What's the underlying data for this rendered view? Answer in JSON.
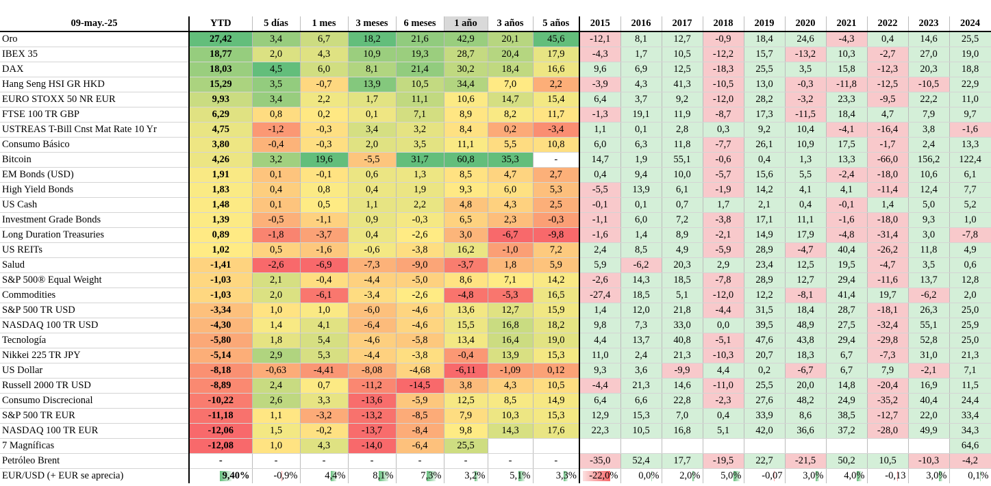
{
  "table": {
    "header": [
      "09-may.-25",
      "YTD",
      "5 días",
      "1 mes",
      "3 meses",
      "6 meses",
      "1 año",
      "3 años",
      "5 años",
      "2015",
      "2016",
      "2017",
      "2018",
      "2019",
      "2020",
      "2021",
      "2022",
      "2023",
      "2024"
    ],
    "rows": [
      [
        "Oro",
        "27,42",
        "3,4",
        "6,7",
        "18,2",
        "21,6",
        "42,9",
        "20,1",
        "45,6",
        "-12,1",
        "8,1",
        "12,7",
        "-0,9",
        "18,4",
        "24,6",
        "-4,3",
        "0,4",
        "14,6",
        "25,5"
      ],
      [
        "IBEX 35",
        "18,77",
        "2,0",
        "4,3",
        "10,9",
        "19,3",
        "28,7",
        "20,4",
        "17,9",
        "-4,3",
        "1,7",
        "10,5",
        "-12,2",
        "15,7",
        "-13,2",
        "10,3",
        "-2,7",
        "27,0",
        "19,0"
      ],
      [
        "DAX",
        "18,03",
        "4,5",
        "6,0",
        "8,1",
        "21,4",
        "30,2",
        "18,4",
        "16,6",
        "9,6",
        "6,9",
        "12,5",
        "-18,3",
        "25,5",
        "3,5",
        "15,8",
        "-12,3",
        "20,3",
        "18,8"
      ],
      [
        "Hang Seng HSI GR HKD",
        "15,29",
        "3,5",
        "-0,7",
        "13,9",
        "10,5",
        "34,4",
        "7,0",
        "2,2",
        "-3,9",
        "4,3",
        "41,3",
        "-10,5",
        "13,0",
        "-0,3",
        "-11,8",
        "-12,5",
        "-10,5",
        "22,9"
      ],
      [
        "EURO STOXX 50 NR EUR",
        "9,93",
        "3,4",
        "2,2",
        "1,7",
        "11,1",
        "10,6",
        "14,7",
        "15,4",
        "6,4",
        "3,7",
        "9,2",
        "-12,0",
        "28,2",
        "-3,2",
        "23,3",
        "-9,5",
        "22,2",
        "11,0"
      ],
      [
        "FTSE 100 TR GBP",
        "6,29",
        "0,8",
        "0,2",
        "0,1",
        "7,1",
        "8,9",
        "8,2",
        "11,7",
        "-1,3",
        "19,1",
        "11,9",
        "-8,7",
        "17,3",
        "-11,5",
        "18,4",
        "4,7",
        "7,9",
        "9,7"
      ],
      [
        "USTREAS T-Bill Cnst Mat Rate 10 Yr",
        "4,75",
        "-1,2",
        "-0,3",
        "3,4",
        "3,2",
        "8,4",
        "0,2",
        "-3,4",
        "1,1",
        "0,1",
        "2,8",
        "0,3",
        "9,2",
        "10,4",
        "-4,1",
        "-16,4",
        "3,8",
        "-1,6"
      ],
      [
        "Consumo Básico",
        "3,80",
        "-0,4",
        "-0,3",
        "2,0",
        "3,5",
        "11,1",
        "5,5",
        "10,8",
        "6,0",
        "6,3",
        "11,8",
        "-7,7",
        "26,1",
        "10,9",
        "17,5",
        "-1,7",
        "2,4",
        "13,3"
      ],
      [
        "Bitcoin",
        "4,26",
        "3,2",
        "19,6",
        "-5,5",
        "31,7",
        "60,8",
        "35,3",
        "-",
        "14,7",
        "1,9",
        "55,1",
        "-0,6",
        "0,4",
        "1,3",
        "13,3",
        "-66,0",
        "156,2",
        "122,4"
      ],
      [
        "EM Bonds (USD)",
        "1,91",
        "0,1",
        "-0,1",
        "0,6",
        "1,3",
        "8,5",
        "4,7",
        "2,7",
        "0,4",
        "9,4",
        "10,0",
        "-5,7",
        "15,6",
        "5,5",
        "-2,4",
        "-18,0",
        "10,6",
        "6,1"
      ],
      [
        "High Yield Bonds",
        "1,83",
        "0,4",
        "0,8",
        "0,4",
        "1,9",
        "9,3",
        "6,0",
        "5,3",
        "-5,5",
        "13,9",
        "6,1",
        "-1,9",
        "14,2",
        "4,1",
        "4,1",
        "-11,4",
        "12,4",
        "7,7"
      ],
      [
        "US Cash",
        "1,48",
        "0,1",
        "0,5",
        "1,1",
        "2,2",
        "4,8",
        "4,3",
        "2,5",
        "-0,1",
        "0,1",
        "0,7",
        "1,7",
        "2,1",
        "0,4",
        "-0,1",
        "1,4",
        "5,0",
        "5,2"
      ],
      [
        "Investment Grade Bonds",
        "1,39",
        "-0,5",
        "-1,1",
        "0,9",
        "-0,3",
        "6,5",
        "2,3",
        "-0,3",
        "-1,1",
        "6,0",
        "7,2",
        "-3,8",
        "17,1",
        "11,1",
        "-1,6",
        "-18,0",
        "9,3",
        "1,0"
      ],
      [
        "Long Duration Treasuries",
        "0,89",
        "-1,8",
        "-3,7",
        "0,4",
        "-2,6",
        "3,0",
        "-6,7",
        "-9,8",
        "-1,6",
        "1,4",
        "8,9",
        "-2,1",
        "14,9",
        "17,9",
        "-4,8",
        "-31,4",
        "3,0",
        "-7,8"
      ],
      [
        "US REITs",
        "1,02",
        "0,5",
        "-1,6",
        "-0,6",
        "-3,8",
        "16,2",
        "-1,0",
        "7,2",
        "2,4",
        "8,5",
        "4,9",
        "-5,9",
        "28,9",
        "-4,7",
        "40,4",
        "-26,2",
        "11,8",
        "4,9"
      ],
      [
        "Salud",
        "-1,41",
        "-2,6",
        "-6,9",
        "-7,3",
        "-9,0",
        "-3,7",
        "1,8",
        "5,9",
        "5,9",
        "-6,2",
        "20,3",
        "2,9",
        "23,4",
        "12,5",
        "19,5",
        "-4,7",
        "3,5",
        "0,6"
      ],
      [
        "S&P 500® Equal Weight",
        "-1,03",
        "2,1",
        "-0,4",
        "-4,4",
        "-5,0",
        "8,6",
        "7,1",
        "14,2",
        "-2,6",
        "14,3",
        "18,5",
        "-7,8",
        "28,9",
        "12,7",
        "29,4",
        "-11,6",
        "13,7",
        "12,8"
      ],
      [
        "Commodities",
        "-1,03",
        "2,0",
        "-6,1",
        "-3,4",
        "-2,6",
        "-4,8",
        "-5,3",
        "16,5",
        "-27,4",
        "18,5",
        "5,1",
        "-12,0",
        "12,2",
        "-8,1",
        "41,4",
        "19,7",
        "-6,2",
        "2,0"
      ],
      [
        "S&P 500 TR USD",
        "-3,34",
        "1,0",
        "1,0",
        "-6,0",
        "-4,6",
        "13,6",
        "12,7",
        "15,9",
        "1,4",
        "12,0",
        "21,8",
        "-4,4",
        "31,5",
        "18,4",
        "28,7",
        "-18,1",
        "26,3",
        "25,0"
      ],
      [
        "NASDAQ 100 TR USD",
        "-4,30",
        "1,4",
        "4,1",
        "-6,4",
        "-4,6",
        "15,5",
        "16,8",
        "18,2",
        "9,8",
        "7,3",
        "33,0",
        "0,0",
        "39,5",
        "48,9",
        "27,5",
        "-32,4",
        "55,1",
        "25,9"
      ],
      [
        "Tecnología",
        "-5,80",
        "1,8",
        "5,4",
        "-4,6",
        "-5,8",
        "13,4",
        "16,4",
        "19,0",
        "4,4",
        "13,7",
        "40,8",
        "-5,1",
        "47,6",
        "43,8",
        "29,4",
        "-29,8",
        "52,8",
        "25,0"
      ],
      [
        "Nikkei 225 TR JPY",
        "-5,14",
        "2,9",
        "5,3",
        "-4,4",
        "-3,8",
        "-0,4",
        "13,9",
        "15,3",
        "11,0",
        "2,4",
        "21,3",
        "-10,3",
        "20,7",
        "18,3",
        "6,7",
        "-7,3",
        "31,0",
        "21,3"
      ],
      [
        "US Dollar",
        "-8,18",
        "-0,63",
        "-4,41",
        "-8,08",
        "-4,68",
        "-6,11",
        "-1,09",
        "0,12",
        "9,3",
        "3,6",
        "-9,9",
        "4,4",
        "0,2",
        "-6,7",
        "6,7",
        "7,9",
        "-2,1",
        "7,1"
      ],
      [
        "Russell 2000 TR USD",
        "-8,89",
        "2,4",
        "0,7",
        "-11,2",
        "-14,5",
        "3,8",
        "4,3",
        "10,5",
        "-4,4",
        "21,3",
        "14,6",
        "-11,0",
        "25,5",
        "20,0",
        "14,8",
        "-20,4",
        "16,9",
        "11,5"
      ],
      [
        "Consumo Discrecional",
        "-10,22",
        "2,6",
        "3,3",
        "-13,6",
        "-5,9",
        "12,5",
        "8,5",
        "14,9",
        "6,4",
        "6,6",
        "22,8",
        "-2,3",
        "27,6",
        "48,2",
        "24,9",
        "-35,2",
        "40,4",
        "24,4"
      ],
      [
        "S&P 500 TR EUR",
        "-11,18",
        "1,1",
        "-3,2",
        "-13,2",
        "-8,5",
        "7,9",
        "10,3",
        "15,3",
        "12,9",
        "15,3",
        "7,0",
        "0,4",
        "33,9",
        "8,6",
        "38,5",
        "-12,7",
        "22,0",
        "33,4"
      ],
      [
        "NASDAQ 100 TR EUR",
        "-12,06",
        "1,5",
        "-0,2",
        "-13,7",
        "-8,4",
        "9,8",
        "14,3",
        "17,6",
        "22,3",
        "10,5",
        "16,8",
        "5,1",
        "42,0",
        "36,6",
        "37,2",
        "-28,0",
        "49,9",
        "34,3"
      ],
      [
        "7 Magníficas",
        "-12,08",
        "1,0",
        "4,3",
        "-14,0",
        "-6,4",
        "25,5",
        null,
        null,
        null,
        null,
        null,
        null,
        null,
        null,
        null,
        null,
        null,
        "64,6"
      ],
      [
        "Petróleo Brent",
        "-",
        "-",
        "-",
        "-",
        "-",
        "-",
        "-",
        "-",
        "-35,0",
        "52,4",
        "17,7",
        "-19,5",
        "22,7",
        "-21,5",
        "50,2",
        "10,5",
        "-10,3",
        "-4,2"
      ]
    ],
    "footer": [
      "EUR/USD (+ EUR se aprecia)",
      "9,40%",
      "-0,9%",
      "4,4%",
      "8,1%",
      "7,3%",
      "3,2%",
      "5,1%",
      "3,3%",
      "-22,0%",
      "0,0%",
      "2,0%",
      "5,0%",
      "-0,07",
      "3,0%",
      "4,0%",
      "-0,13",
      "3,0%",
      "0,1%"
    ]
  }
}
